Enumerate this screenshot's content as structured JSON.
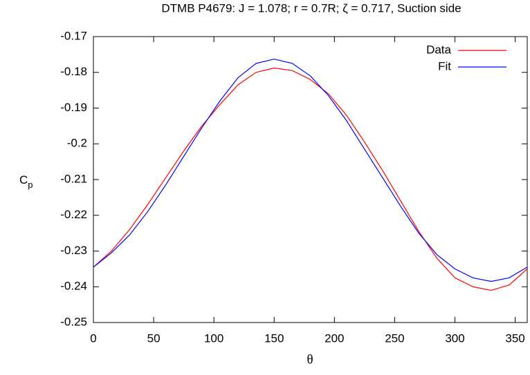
{
  "chart_data": {
    "type": "line",
    "title": "DTMB P4679: J = 1.078; r = 0.7R; ζ = 0.717, Suction side",
    "xlabel": "θ",
    "ylabel": {
      "text": "C",
      "subscript": "p"
    },
    "x": [
      0,
      15,
      30,
      45,
      60,
      75,
      90,
      105,
      120,
      135,
      150,
      165,
      180,
      195,
      210,
      225,
      240,
      255,
      270,
      285,
      300,
      315,
      330,
      345,
      360
    ],
    "series": [
      {
        "name": "Data",
        "color": "#ff0000",
        "values": [
          -0.2345,
          -0.23,
          -0.224,
          -0.217,
          -0.2095,
          -0.202,
          -0.195,
          -0.189,
          -0.1835,
          -0.18,
          -0.1788,
          -0.1795,
          -0.182,
          -0.186,
          -0.192,
          -0.1995,
          -0.2075,
          -0.216,
          -0.2245,
          -0.232,
          -0.2375,
          -0.24,
          -0.241,
          -0.2395,
          -0.235
        ]
      },
      {
        "name": "Fit",
        "color": "#0000ff",
        "values": [
          -0.2345,
          -0.2305,
          -0.2255,
          -0.219,
          -0.2115,
          -0.2035,
          -0.1955,
          -0.188,
          -0.1815,
          -0.1775,
          -0.1763,
          -0.1775,
          -0.181,
          -0.1865,
          -0.1935,
          -0.2015,
          -0.2095,
          -0.2175,
          -0.225,
          -0.231,
          -0.235,
          -0.2375,
          -0.2385,
          -0.2375,
          -0.2345
        ]
      }
    ],
    "xlim": [
      0,
      360
    ],
    "xticks": [
      0,
      50,
      100,
      150,
      200,
      250,
      300,
      350
    ],
    "ylim": [
      -0.25,
      -0.17
    ],
    "yticks": [
      -0.25,
      -0.24,
      -0.23,
      -0.22,
      -0.21,
      -0.2,
      -0.19,
      -0.18,
      -0.17
    ],
    "grid": false,
    "legend": "top-right"
  }
}
